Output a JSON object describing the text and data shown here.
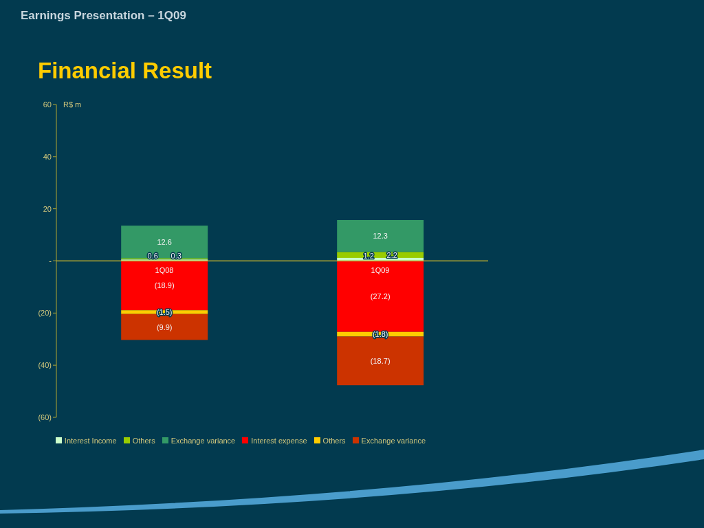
{
  "chart_data": {
    "type": "bar",
    "title": "Financial Result",
    "annotations": [
      "Earnings Presentation – 1Q09"
    ],
    "ylabel": "R$ m",
    "categories": [
      "1Q08",
      "1Q09"
    ],
    "stacked": true,
    "legend": "bottom",
    "series": [
      {
        "name": "Interest Income",
        "color": "#ccffcc",
        "values": [
          0.6,
          1.2
        ],
        "value_labels": [
          "0.6",
          "1.2"
        ]
      },
      {
        "name": "Others",
        "color": "#99cc00",
        "values": [
          0.3,
          2.2
        ],
        "value_labels": [
          "0.3",
          "2.2"
        ]
      },
      {
        "name": "Exchange variance",
        "color": "#339966",
        "values": [
          12.6,
          12.3
        ],
        "value_labels": [
          "12.6",
          "12.3"
        ]
      },
      {
        "name": "Interest expense",
        "color": "#ff0000",
        "values": [
          -18.9,
          -27.2
        ],
        "value_labels": [
          "(18.9)",
          "(27.2)"
        ]
      },
      {
        "name": "Others",
        "color": "#ffcc00",
        "values": [
          -1.5,
          -1.8
        ],
        "value_labels": [
          "(1.5)",
          "(1.8)"
        ]
      },
      {
        "name": "Exchange variance",
        "color": "#cc3300",
        "values": [
          -9.9,
          -18.7
        ],
        "value_labels": [
          "(9.9)",
          "(18.7)"
        ]
      }
    ],
    "ylim": [
      -60,
      60
    ],
    "yticks": [
      60,
      40,
      20,
      {
        "value": 0,
        "label": "-"
      },
      {
        "value": -20,
        "label": "(20)"
      },
      {
        "value": -40,
        "label": "(40)"
      },
      {
        "value": -60,
        "label": "(60)"
      }
    ]
  }
}
